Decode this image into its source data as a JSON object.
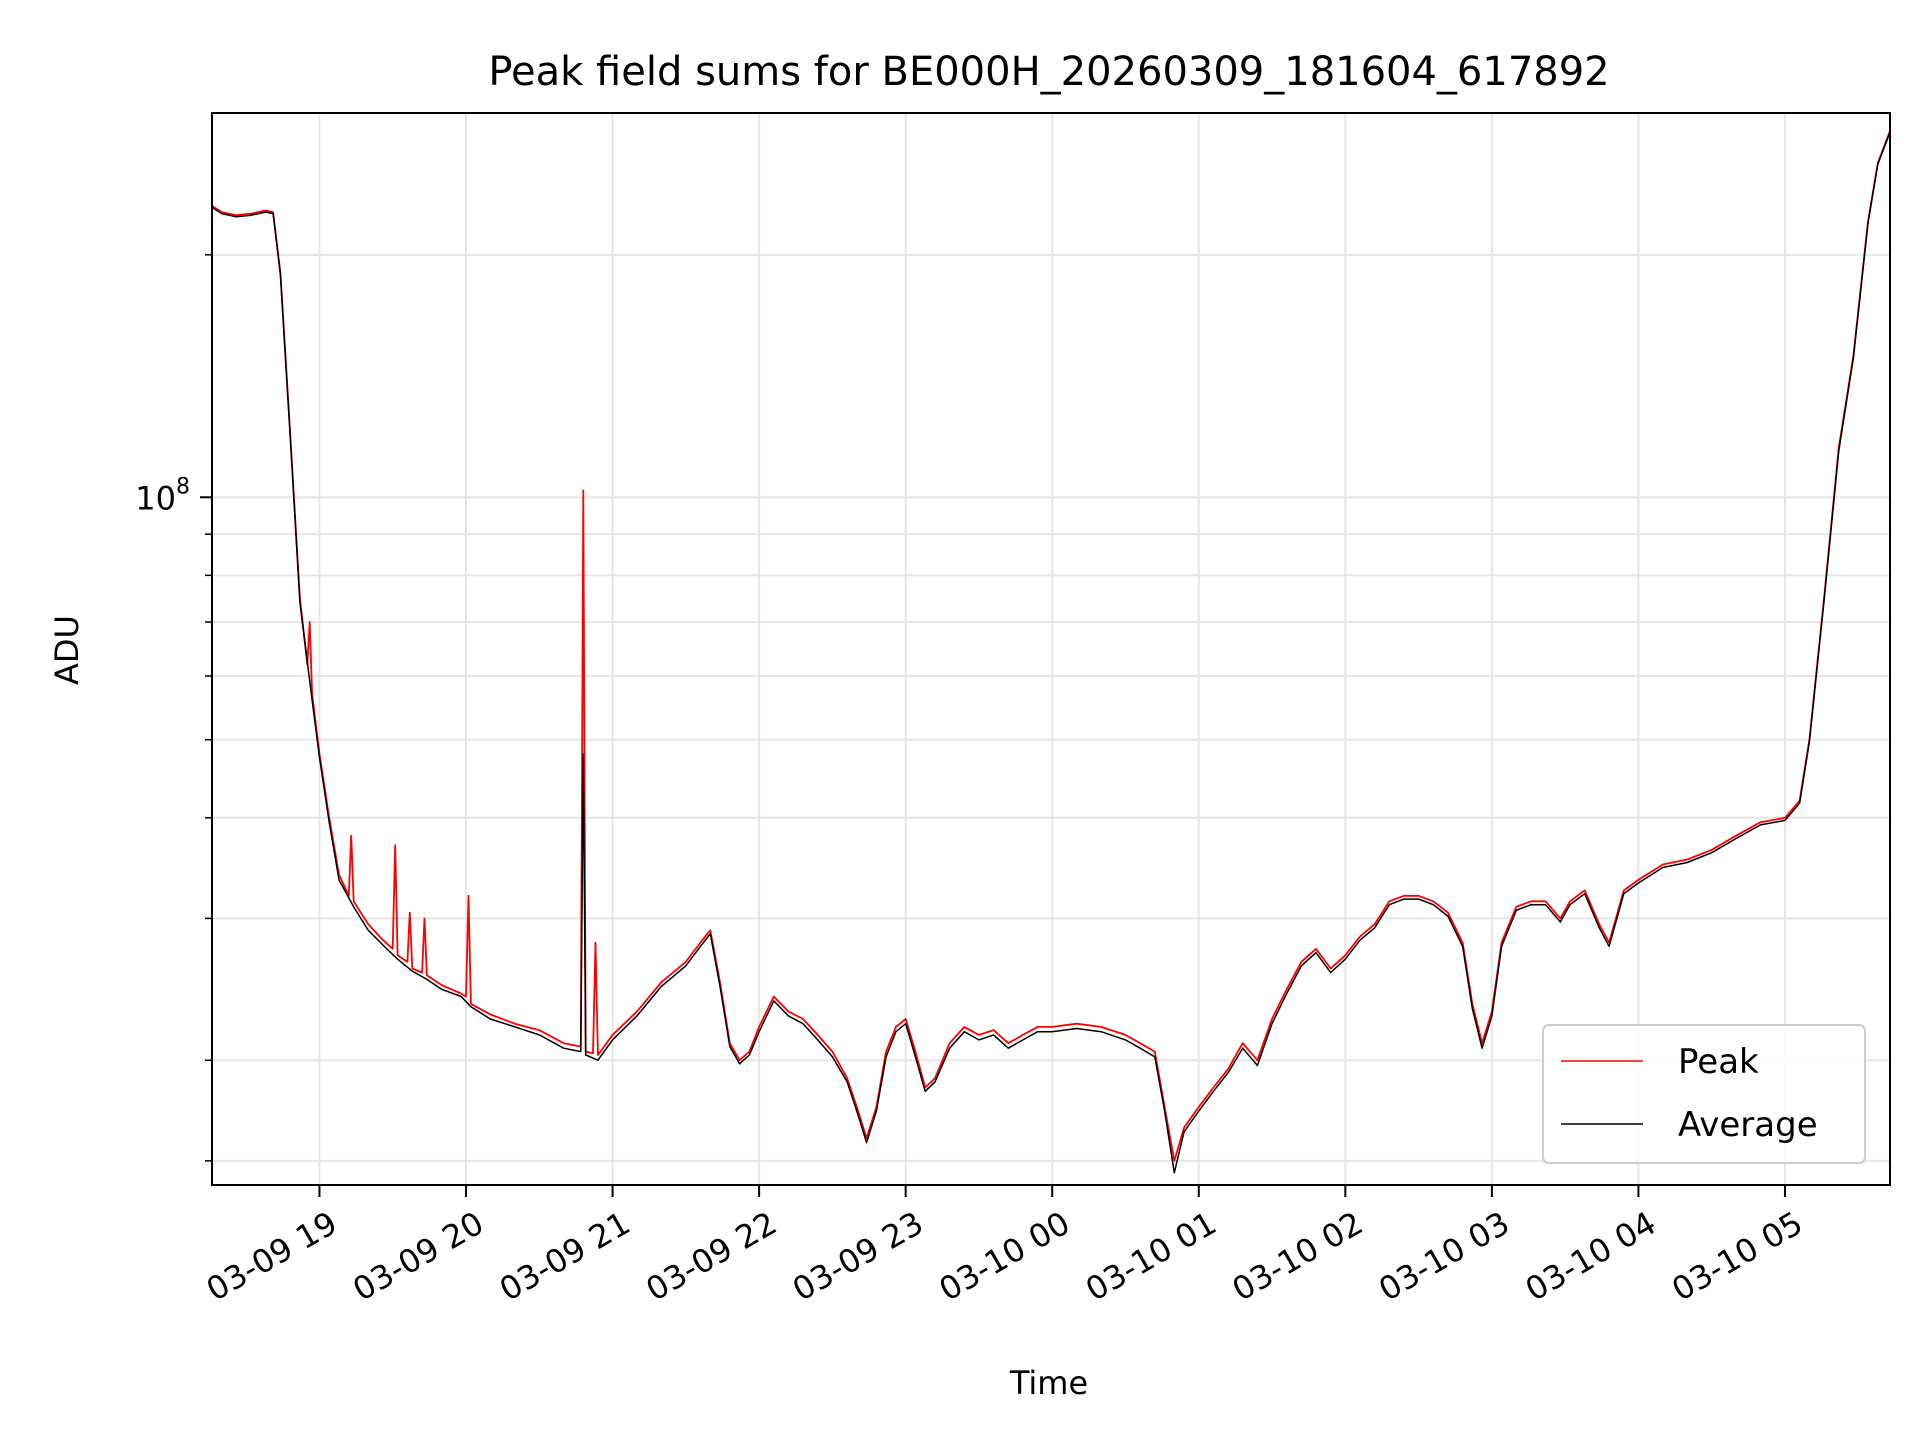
{
  "chart_data": {
    "type": "line",
    "title": "Peak field sums for BE000H_20260309_181604_617892",
    "xlabel": "Time",
    "ylabel": "ADU",
    "y_scale": "log",
    "ylim": [
      14000000,
      300000000
    ],
    "xlim": [
      "03-09 18:16",
      "03-10 05:43"
    ],
    "grid": true,
    "legend_position": "lower-right",
    "x_ticks": [
      "03-09 19",
      "03-09 20",
      "03-09 21",
      "03-09 22",
      "03-09 23",
      "03-10 00",
      "03-10 01",
      "03-10 02",
      "03-10 03",
      "03-10 04",
      "03-10 05"
    ],
    "y_tick_major": {
      "label_base": "10",
      "label_exp": "8",
      "value": 100000000
    },
    "y_minor_ticks": [
      15000000,
      20000000,
      30000000,
      40000000,
      50000000,
      60000000,
      70000000,
      80000000,
      90000000,
      200000000
    ],
    "colors": {
      "peak": "#ff0000",
      "average": "#000000",
      "grid": "#e6e6e6"
    },
    "series": [
      {
        "name": "Peak",
        "color": "#ff0000",
        "points": [
          [
            "03-09 18:16",
            230000000
          ],
          [
            "03-09 18:20",
            226000000
          ],
          [
            "03-09 18:26",
            224000000
          ],
          [
            "03-09 18:32",
            225000000
          ],
          [
            "03-09 18:38",
            227000000
          ],
          [
            "03-09 18:41",
            226000000
          ],
          [
            "03-09 18:44",
            190000000
          ],
          [
            "03-09 18:48",
            120000000
          ],
          [
            "03-09 18:52",
            75000000
          ],
          [
            "03-09 18:55",
            62000000
          ],
          [
            "03-09 18:56",
            70000000
          ],
          [
            "03-09 18:57",
            57000000
          ],
          [
            "03-09 19:00",
            48000000
          ],
          [
            "03-09 19:04",
            40000000
          ],
          [
            "03-09 19:08",
            34000000
          ],
          [
            "03-09 19:12",
            32000000
          ],
          [
            "03-09 19:13",
            38000000
          ],
          [
            "03-09 19:14",
            31500000
          ],
          [
            "03-09 19:20",
            29500000
          ],
          [
            "03-09 19:26",
            28200000
          ],
          [
            "03-09 19:30",
            27500000
          ],
          [
            "03-09 19:31",
            37000000
          ],
          [
            "03-09 19:32",
            27000000
          ],
          [
            "03-09 19:36",
            26500000
          ],
          [
            "03-09 19:37",
            30500000
          ],
          [
            "03-09 19:38",
            26000000
          ],
          [
            "03-09 19:42",
            25700000
          ],
          [
            "03-09 19:43",
            30000000
          ],
          [
            "03-09 19:44",
            25500000
          ],
          [
            "03-09 19:50",
            24800000
          ],
          [
            "03-09 19:58",
            24200000
          ],
          [
            "03-09 20:00",
            24000000
          ],
          [
            "03-09 20:01",
            32000000
          ],
          [
            "03-09 20:02",
            23500000
          ],
          [
            "03-09 20:10",
            22800000
          ],
          [
            "03-09 20:20",
            22200000
          ],
          [
            "03-09 20:30",
            21800000
          ],
          [
            "03-09 20:40",
            21000000
          ],
          [
            "03-09 20:47",
            20800000
          ],
          [
            "03-09 20:48",
            102000000
          ],
          [
            "03-09 20:49",
            20500000
          ],
          [
            "03-09 20:52",
            20400000
          ],
          [
            "03-09 20:53",
            28000000
          ],
          [
            "03-09 20:54",
            20300000
          ],
          [
            "03-09 21:00",
            21500000
          ],
          [
            "03-09 21:10",
            23000000
          ],
          [
            "03-09 21:20",
            25000000
          ],
          [
            "03-09 21:30",
            26500000
          ],
          [
            "03-09 21:36",
            28000000
          ],
          [
            "03-09 21:40",
            29000000
          ],
          [
            "03-09 21:44",
            25000000
          ],
          [
            "03-09 21:48",
            21000000
          ],
          [
            "03-09 21:52",
            20000000
          ],
          [
            "03-09 21:56",
            20500000
          ],
          [
            "03-09 22:00",
            22000000
          ],
          [
            "03-09 22:06",
            24000000
          ],
          [
            "03-09 22:12",
            23000000
          ],
          [
            "03-09 22:18",
            22500000
          ],
          [
            "03-09 22:24",
            21500000
          ],
          [
            "03-09 22:30",
            20500000
          ],
          [
            "03-09 22:36",
            19000000
          ],
          [
            "03-09 22:40",
            17500000
          ],
          [
            "03-09 22:44",
            16000000
          ],
          [
            "03-09 22:48",
            17500000
          ],
          [
            "03-09 22:52",
            20500000
          ],
          [
            "03-09 22:56",
            22000000
          ],
          [
            "03-09 23:00",
            22500000
          ],
          [
            "03-09 23:04",
            20500000
          ],
          [
            "03-09 23:08",
            18500000
          ],
          [
            "03-09 23:12",
            19000000
          ],
          [
            "03-09 23:18",
            21000000
          ],
          [
            "03-09 23:24",
            22000000
          ],
          [
            "03-09 23:30",
            21500000
          ],
          [
            "03-09 23:36",
            21800000
          ],
          [
            "03-09 23:42",
            21000000
          ],
          [
            "03-09 23:48",
            21500000
          ],
          [
            "03-09 23:54",
            22000000
          ],
          [
            "03-10 00:00",
            22000000
          ],
          [
            "03-10 00:10",
            22200000
          ],
          [
            "03-10 00:20",
            22000000
          ],
          [
            "03-10 00:30",
            21500000
          ],
          [
            "03-10 00:36",
            21000000
          ],
          [
            "03-10 00:42",
            20500000
          ],
          [
            "03-10 00:46",
            17500000
          ],
          [
            "03-10 00:50",
            15000000
          ],
          [
            "03-10 00:54",
            16500000
          ],
          [
            "03-10 01:00",
            17500000
          ],
          [
            "03-10 01:06",
            18500000
          ],
          [
            "03-10 01:12",
            19500000
          ],
          [
            "03-10 01:18",
            21000000
          ],
          [
            "03-10 01:24",
            20000000
          ],
          [
            "03-10 01:30",
            22500000
          ],
          [
            "03-10 01:36",
            24500000
          ],
          [
            "03-10 01:42",
            26500000
          ],
          [
            "03-10 01:48",
            27500000
          ],
          [
            "03-10 01:54",
            26000000
          ],
          [
            "03-10 02:00",
            27000000
          ],
          [
            "03-10 02:06",
            28500000
          ],
          [
            "03-10 02:12",
            29500000
          ],
          [
            "03-10 02:18",
            31500000
          ],
          [
            "03-10 02:24",
            32000000
          ],
          [
            "03-10 02:30",
            32000000
          ],
          [
            "03-10 02:36",
            31500000
          ],
          [
            "03-10 02:42",
            30500000
          ],
          [
            "03-10 02:48",
            28000000
          ],
          [
            "03-10 02:52",
            23500000
          ],
          [
            "03-10 02:56",
            21000000
          ],
          [
            "03-10 03:00",
            23000000
          ],
          [
            "03-10 03:04",
            28000000
          ],
          [
            "03-10 03:10",
            31000000
          ],
          [
            "03-10 03:16",
            31500000
          ],
          [
            "03-10 03:22",
            31500000
          ],
          [
            "03-10 03:28",
            30000000
          ],
          [
            "03-10 03:32",
            31500000
          ],
          [
            "03-10 03:38",
            32500000
          ],
          [
            "03-10 03:44",
            29500000
          ],
          [
            "03-10 03:48",
            28000000
          ],
          [
            "03-10 03:54",
            32500000
          ],
          [
            "03-10 04:00",
            33500000
          ],
          [
            "03-10 04:10",
            35000000
          ],
          [
            "03-10 04:20",
            35500000
          ],
          [
            "03-10 04:30",
            36500000
          ],
          [
            "03-10 04:40",
            38000000
          ],
          [
            "03-10 04:50",
            39500000
          ],
          [
            "03-10 05:00",
            40000000
          ],
          [
            "03-10 05:06",
            42000000
          ],
          [
            "03-10 05:10",
            50000000
          ],
          [
            "03-10 05:16",
            75000000
          ],
          [
            "03-10 05:22",
            115000000
          ],
          [
            "03-10 05:28",
            150000000
          ],
          [
            "03-10 05:34",
            220000000
          ],
          [
            "03-10 05:38",
            260000000
          ],
          [
            "03-10 05:43",
            285000000
          ]
        ]
      },
      {
        "name": "Average",
        "color": "#000000",
        "points": [
          [
            "03-09 18:16",
            229000000
          ],
          [
            "03-09 18:20",
            225000000
          ],
          [
            "03-09 18:26",
            223000000
          ],
          [
            "03-09 18:32",
            224000000
          ],
          [
            "03-09 18:38",
            226000000
          ],
          [
            "03-09 18:41",
            225000000
          ],
          [
            "03-09 18:44",
            189000000
          ],
          [
            "03-09 18:48",
            119000000
          ],
          [
            "03-09 18:52",
            74000000
          ],
          [
            "03-09 18:57",
            56000000
          ],
          [
            "03-09 19:00",
            47500000
          ],
          [
            "03-09 19:04",
            39500000
          ],
          [
            "03-09 19:08",
            33500000
          ],
          [
            "03-09 19:14",
            31000000
          ],
          [
            "03-09 19:20",
            29000000
          ],
          [
            "03-09 19:26",
            27800000
          ],
          [
            "03-09 19:32",
            26700000
          ],
          [
            "03-09 19:38",
            25800000
          ],
          [
            "03-09 19:44",
            25200000
          ],
          [
            "03-09 19:50",
            24500000
          ],
          [
            "03-09 19:58",
            24000000
          ],
          [
            "03-09 20:02",
            23300000
          ],
          [
            "03-09 20:10",
            22500000
          ],
          [
            "03-09 20:20",
            22000000
          ],
          [
            "03-09 20:30",
            21500000
          ],
          [
            "03-09 20:40",
            20700000
          ],
          [
            "03-09 20:47",
            20500000
          ],
          [
            "03-09 20:48",
            48000000
          ],
          [
            "03-09 20:49",
            20300000
          ],
          [
            "03-09 20:54",
            20000000
          ],
          [
            "03-09 21:00",
            21200000
          ],
          [
            "03-09 21:10",
            22700000
          ],
          [
            "03-09 21:20",
            24700000
          ],
          [
            "03-09 21:30",
            26200000
          ],
          [
            "03-09 21:36",
            27700000
          ],
          [
            "03-09 21:40",
            28700000
          ],
          [
            "03-09 21:44",
            24700000
          ],
          [
            "03-09 21:48",
            20800000
          ],
          [
            "03-09 21:52",
            19800000
          ],
          [
            "03-09 21:56",
            20300000
          ],
          [
            "03-09 22:00",
            21700000
          ],
          [
            "03-09 22:06",
            23700000
          ],
          [
            "03-09 22:12",
            22700000
          ],
          [
            "03-09 22:18",
            22200000
          ],
          [
            "03-09 22:24",
            21200000
          ],
          [
            "03-09 22:30",
            20200000
          ],
          [
            "03-09 22:36",
            18800000
          ],
          [
            "03-09 22:40",
            17300000
          ],
          [
            "03-09 22:44",
            15800000
          ],
          [
            "03-09 22:48",
            17300000
          ],
          [
            "03-09 22:52",
            20200000
          ],
          [
            "03-09 22:56",
            21700000
          ],
          [
            "03-09 23:00",
            22200000
          ],
          [
            "03-09 23:04",
            20200000
          ],
          [
            "03-09 23:08",
            18300000
          ],
          [
            "03-09 23:12",
            18800000
          ],
          [
            "03-09 23:18",
            20700000
          ],
          [
            "03-09 23:24",
            21700000
          ],
          [
            "03-09 23:30",
            21200000
          ],
          [
            "03-09 23:36",
            21500000
          ],
          [
            "03-09 23:42",
            20700000
          ],
          [
            "03-09 23:48",
            21200000
          ],
          [
            "03-09 23:54",
            21700000
          ],
          [
            "03-10 00:00",
            21700000
          ],
          [
            "03-10 00:10",
            21900000
          ],
          [
            "03-10 00:20",
            21700000
          ],
          [
            "03-10 00:30",
            21200000
          ],
          [
            "03-10 00:36",
            20700000
          ],
          [
            "03-10 00:42",
            20200000
          ],
          [
            "03-10 00:46",
            17300000
          ],
          [
            "03-10 00:50",
            14500000
          ],
          [
            "03-10 00:54",
            16300000
          ],
          [
            "03-10 01:00",
            17300000
          ],
          [
            "03-10 01:06",
            18300000
          ],
          [
            "03-10 01:12",
            19300000
          ],
          [
            "03-10 01:18",
            20700000
          ],
          [
            "03-10 01:24",
            19700000
          ],
          [
            "03-10 01:30",
            22200000
          ],
          [
            "03-10 01:36",
            24200000
          ],
          [
            "03-10 01:42",
            26200000
          ],
          [
            "03-10 01:48",
            27200000
          ],
          [
            "03-10 01:54",
            25700000
          ],
          [
            "03-10 02:00",
            26700000
          ],
          [
            "03-10 02:06",
            28200000
          ],
          [
            "03-10 02:12",
            29200000
          ],
          [
            "03-10 02:18",
            31200000
          ],
          [
            "03-10 02:24",
            31700000
          ],
          [
            "03-10 02:30",
            31700000
          ],
          [
            "03-10 02:36",
            31200000
          ],
          [
            "03-10 02:42",
            30200000
          ],
          [
            "03-10 02:48",
            27700000
          ],
          [
            "03-10 02:52",
            23200000
          ],
          [
            "03-10 02:56",
            20700000
          ],
          [
            "03-10 03:00",
            22700000
          ],
          [
            "03-10 03:04",
            27700000
          ],
          [
            "03-10 03:10",
            30700000
          ],
          [
            "03-10 03:16",
            31200000
          ],
          [
            "03-10 03:22",
            31200000
          ],
          [
            "03-10 03:28",
            29700000
          ],
          [
            "03-10 03:32",
            31200000
          ],
          [
            "03-10 03:38",
            32200000
          ],
          [
            "03-10 03:44",
            29200000
          ],
          [
            "03-10 03:48",
            27700000
          ],
          [
            "03-10 03:54",
            32200000
          ],
          [
            "03-10 04:00",
            33200000
          ],
          [
            "03-10 04:10",
            34700000
          ],
          [
            "03-10 04:20",
            35200000
          ],
          [
            "03-10 04:30",
            36200000
          ],
          [
            "03-10 04:40",
            37700000
          ],
          [
            "03-10 04:50",
            39200000
          ],
          [
            "03-10 05:00",
            39700000
          ],
          [
            "03-10 05:06",
            41700000
          ],
          [
            "03-10 05:10",
            49700000
          ],
          [
            "03-10 05:16",
            74500000
          ],
          [
            "03-10 05:22",
            114000000
          ],
          [
            "03-10 05:28",
            149000000
          ],
          [
            "03-10 05:34",
            219000000
          ],
          [
            "03-10 05:38",
            259000000
          ],
          [
            "03-10 05:43",
            284000000
          ]
        ]
      }
    ]
  }
}
